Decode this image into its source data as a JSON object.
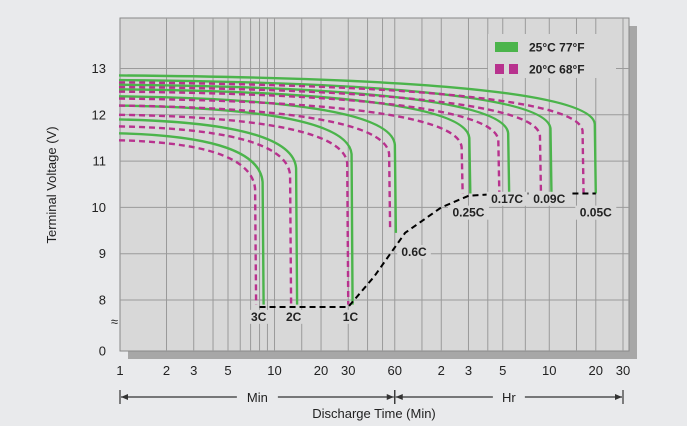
{
  "chart_data": {
    "type": "line",
    "title": "",
    "xlabel": "Discharge Time (Min)",
    "ylabel": "Terminal Voltage (V)",
    "x_scale": "log",
    "x_unit": "min",
    "xlim": [
      1,
      1800
    ],
    "ylim": [
      0,
      13.6
    ],
    "y_ticks": [
      "0",
      "8",
      "9",
      "10",
      "11",
      "12",
      "13"
    ],
    "y_break": "≈",
    "x_ticks": [
      {
        "label": "1",
        "min": 1
      },
      {
        "label": "2",
        "min": 2
      },
      {
        "label": "3",
        "min": 3
      },
      {
        "label": "5",
        "min": 5
      },
      {
        "label": "10",
        "min": 10
      },
      {
        "label": "20",
        "min": 20
      },
      {
        "label": "30",
        "min": 30
      },
      {
        "label": "60",
        "min": 60
      },
      {
        "label": "2",
        "min": 120
      },
      {
        "label": "3",
        "min": 180
      },
      {
        "label": "5",
        "min": 300
      },
      {
        "label": "10",
        "min": 600
      },
      {
        "label": "20",
        "min": 1200
      },
      {
        "label": "30",
        "min": 1800
      }
    ],
    "range_labels": {
      "min": "Min",
      "hr": "Hr"
    },
    "grid": true,
    "legend_position": "top-right",
    "legend": [
      {
        "label": "25°C 77°F",
        "color": "#4bb44b",
        "style": "solid"
      },
      {
        "label": "20°C 68°F",
        "color": "#b8328e",
        "style": "dashed"
      }
    ],
    "cutoff_line": {
      "style": "dashed",
      "color": "#000000",
      "points": [
        [
          8,
          7.85
        ],
        [
          30,
          7.85
        ],
        [
          44,
          8.5
        ],
        [
          70,
          9.45
        ],
        [
          120,
          10
        ],
        [
          180,
          10.25
        ],
        [
          300,
          10.3
        ],
        [
          1200,
          10.3
        ]
      ]
    },
    "series": [
      {
        "rate": "3C",
        "temp": "25°C 77°F",
        "start_v": 11.6,
        "end_min": 8.5,
        "end_v": 7.9
      },
      {
        "rate": "3C",
        "temp": "20°C 68°F",
        "start_v": 11.45,
        "end_min": 7.6,
        "end_v": 7.9
      },
      {
        "rate": "2C",
        "temp": "25°C 77°F",
        "start_v": 11.9,
        "end_min": 14,
        "end_v": 7.9
      },
      {
        "rate": "2C",
        "temp": "20°C 68°F",
        "start_v": 11.75,
        "end_min": 12.8,
        "end_v": 7.9
      },
      {
        "rate": "1C",
        "temp": "25°C 77°F",
        "start_v": 12.2,
        "end_min": 32,
        "end_v": 7.9
      },
      {
        "rate": "1C",
        "temp": "20°C 68°F",
        "start_v": 12.0,
        "end_min": 30,
        "end_v": 7.9
      },
      {
        "rate": "0.6C",
        "temp": "25°C 77°F",
        "start_v": 12.4,
        "end_min": 61,
        "end_v": 9.45
      },
      {
        "rate": "0.6C",
        "temp": "20°C 68°F",
        "start_v": 12.2,
        "end_min": 56,
        "end_v": 9.5
      },
      {
        "rate": "0.25C",
        "temp": "25°C 77°F",
        "start_v": 12.55,
        "end_min": 185,
        "end_v": 10.3
      },
      {
        "rate": "0.25C",
        "temp": "20°C 68°F",
        "start_v": 12.35,
        "end_min": 165,
        "end_v": 10.3
      },
      {
        "rate": "0.17C",
        "temp": "25°C 77°F",
        "start_v": 12.65,
        "end_min": 330,
        "end_v": 10.3
      },
      {
        "rate": "0.17C",
        "temp": "20°C 68°F",
        "start_v": 12.5,
        "end_min": 285,
        "end_v": 10.3
      },
      {
        "rate": "0.09C",
        "temp": "25°C 77°F",
        "start_v": 12.75,
        "end_min": 620,
        "end_v": 10.3
      },
      {
        "rate": "0.09C",
        "temp": "20°C 68°F",
        "start_v": 12.6,
        "end_min": 530,
        "end_v": 10.3
      },
      {
        "rate": "0.05C",
        "temp": "25°C 77°F",
        "start_v": 12.85,
        "end_min": 1200,
        "end_v": 10.3
      },
      {
        "rate": "0.05C",
        "temp": "20°C 68°F",
        "start_v": 12.7,
        "end_min": 1000,
        "end_v": 10.3
      }
    ],
    "rate_labels": [
      {
        "text": "3C",
        "at_min": 7.9,
        "at_v": 7.55
      },
      {
        "text": "2C",
        "at_min": 13.3,
        "at_v": 7.55
      },
      {
        "text": "1C",
        "at_min": 31,
        "at_v": 7.55
      },
      {
        "text": "0.6C",
        "at_min": 80,
        "at_v": 8.95
      },
      {
        "text": "0.25C",
        "at_min": 180,
        "at_v": 9.8
      },
      {
        "text": "0.17C",
        "at_min": 320,
        "at_v": 10.1
      },
      {
        "text": "0.09C",
        "at_min": 600,
        "at_v": 10.1
      },
      {
        "text": "0.05C",
        "at_min": 1200,
        "at_v": 9.8
      }
    ]
  }
}
